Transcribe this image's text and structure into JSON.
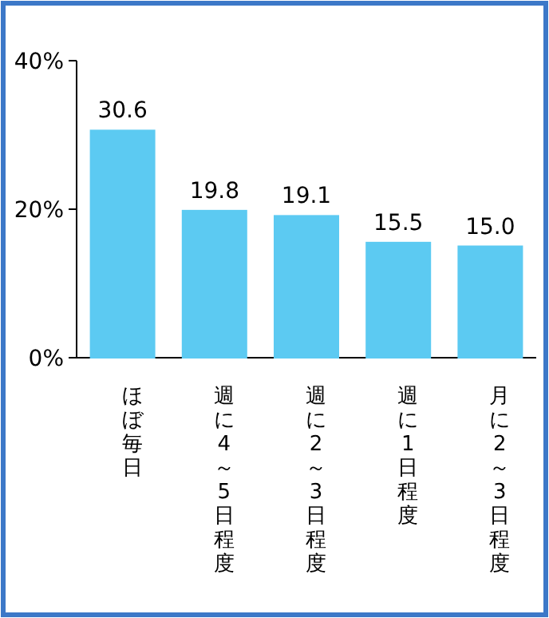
{
  "chart_data": {
    "type": "bar",
    "categories": [
      "ほぼ毎日",
      "週に4～5日程度",
      "週に2～3日程度",
      "週に1日程度",
      "月に2～3日程度"
    ],
    "values": [
      30.6,
      19.8,
      19.1,
      15.5,
      15.0
    ],
    "value_labels": [
      "30.6",
      "19.8",
      "19.1",
      "15.5",
      "15.0"
    ],
    "color": "#5ccaf2",
    "ylim": [
      0,
      40
    ],
    "yticks": [
      {
        "value": 0,
        "label": "0%"
      },
      {
        "value": 20,
        "label": "20%"
      },
      {
        "value": 40,
        "label": "40%"
      }
    ],
    "grid": false
  }
}
